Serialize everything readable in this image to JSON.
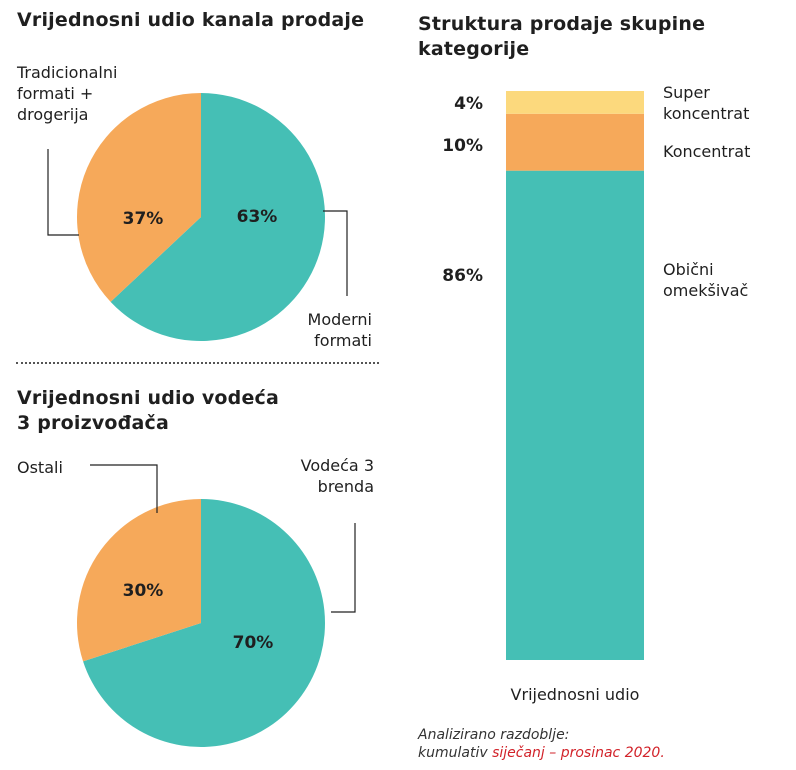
{
  "colors": {
    "teal": "#45bfb5",
    "orange": "#f6a95a",
    "yellow": "#fcd97d",
    "text": "#1f1f1f",
    "leader": "#222222",
    "accent": "#d2232a"
  },
  "chart_data": [
    {
      "type": "pie",
      "title": "Vrijednosni udio kanala prodaje",
      "slices": [
        {
          "label": "Moderni formati",
          "value": 63,
          "value_label": "63%",
          "color": "#45bfb5"
        },
        {
          "label": "Tradicionalni formati + drogerija",
          "value": 37,
          "value_label": "37%",
          "color": "#f6a95a"
        }
      ],
      "label_lines": {
        "traditional": [
          "Tradicionalni",
          "formati +",
          "drogerija"
        ],
        "modern": [
          "Moderni",
          "formati"
        ]
      }
    },
    {
      "type": "pie",
      "title": "Vrijednosni udio vodeća 3 proizvođača",
      "title_lines": [
        "Vrijednosni udio vodeća",
        "3 proizvođača"
      ],
      "slices": [
        {
          "label": "Vodeća 3 brenda",
          "value": 70,
          "value_label": "70%",
          "color": "#45bfb5"
        },
        {
          "label": "Ostali",
          "value": 30,
          "value_label": "30%",
          "color": "#f6a95a"
        }
      ],
      "label_lines": {
        "others": [
          "Ostali"
        ],
        "top3": [
          "Vodeća 3",
          "brenda"
        ]
      }
    },
    {
      "type": "bar",
      "stacked": true,
      "title": "Struktura prodaje skupine kategorije",
      "title_lines": [
        "Struktura prodaje skupine",
        "kategorije"
      ],
      "categories": [
        "Vrijednosni udio"
      ],
      "series": [
        {
          "name": "Obični omekšivač",
          "name_lines": [
            "Obični",
            "omekšivač"
          ],
          "values": [
            86
          ],
          "value_label": "86%",
          "color": "#45bfb5"
        },
        {
          "name": "Koncentrat",
          "name_lines": [
            "Koncentrat"
          ],
          "values": [
            10
          ],
          "value_label": "10%",
          "color": "#f6a95a"
        },
        {
          "name": "Super koncentrat",
          "name_lines": [
            "Super",
            "koncentrat"
          ],
          "values": [
            4
          ],
          "value_label": "4%",
          "color": "#fcd97d"
        }
      ],
      "ylim": [
        0,
        100
      ]
    }
  ],
  "footnote": {
    "line1": "Analizirano razdoblje:",
    "line2_prefix": "kumulativ ",
    "line2_period": "siječanj – prosinac 2020."
  }
}
